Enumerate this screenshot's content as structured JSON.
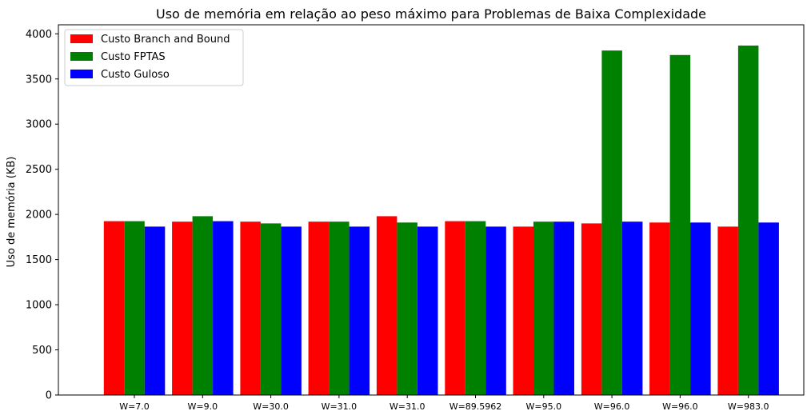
{
  "chart_data": {
    "type": "bar",
    "title": "Uso de memória em relação ao peso máximo para Problemas de Baixa Complexidade",
    "xlabel": "",
    "ylabel": "Uso de memória (KB)",
    "ylim": [
      0,
      4100
    ],
    "yticks": [
      0,
      500,
      1000,
      1500,
      2000,
      2500,
      3000,
      3500,
      4000
    ],
    "grid": false,
    "legend_position": "top-left",
    "categories": [
      "W=7.0",
      "W=9.0",
      "W=30.0",
      "W=31.0",
      "W=31.0",
      "W=89.5962",
      "W=95.0",
      "W=96.0",
      "W=96.0",
      "W=983.0"
    ],
    "series": [
      {
        "name": "Custo Branch and Bound",
        "color": "#ff0000",
        "values": [
          1925,
          1920,
          1920,
          1920,
          1980,
          1925,
          1865,
          1900,
          1910,
          1865
        ]
      },
      {
        "name": "Custo FPTAS",
        "color": "#008000",
        "values": [
          1925,
          1980,
          1900,
          1920,
          1910,
          1925,
          1920,
          3815,
          3765,
          3870
        ]
      },
      {
        "name": "Custo Guloso",
        "color": "#0000ff",
        "values": [
          1865,
          1925,
          1865,
          1865,
          1865,
          1865,
          1920,
          1920,
          1910,
          1910
        ]
      }
    ]
  }
}
